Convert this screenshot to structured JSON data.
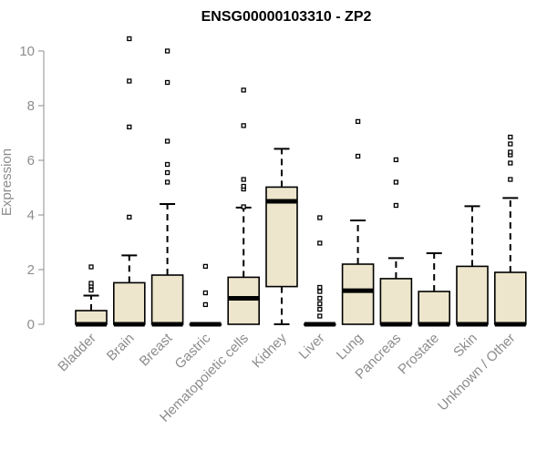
{
  "chart_data": {
    "type": "boxplot",
    "title": "ENSG00000103310 - ZP2",
    "xlabel": "",
    "ylabel": "Expression",
    "ylim": [
      0,
      10.5
    ],
    "yticks": [
      0,
      2,
      4,
      6,
      8,
      10
    ],
    "colors": {
      "box_fill": "#ede6cc",
      "box_stroke": "#000000",
      "axis": "#8c8c8c",
      "text": "#8c8c8c",
      "title": "#000000"
    },
    "categories": [
      "Bladder",
      "Brain",
      "Breast",
      "Gastric",
      "Hematopoietic cells",
      "Kidney",
      "Liver",
      "Lung",
      "Pancreas",
      "Prostate",
      "Skin",
      "Unknown / Other"
    ],
    "boxes": [
      {
        "category": "Bladder",
        "min": 0,
        "q1": 0,
        "median": 0,
        "q3": 0.5,
        "max": 1.05,
        "outliers": [
          1.25,
          1.4,
          1.5,
          2.1
        ]
      },
      {
        "category": "Brain",
        "min": 0,
        "q1": 0,
        "median": 0,
        "q3": 1.52,
        "max": 2.52,
        "outliers": [
          3.92,
          7.22,
          8.9,
          10.45
        ]
      },
      {
        "category": "Breast",
        "min": 0,
        "q1": 0,
        "median": 0,
        "q3": 1.8,
        "max": 4.4,
        "outliers": [
          5.2,
          5.55,
          5.85,
          6.7,
          8.85,
          10.0
        ]
      },
      {
        "category": "Gastric",
        "min": 0,
        "q1": 0,
        "median": 0,
        "q3": 0,
        "max": 0,
        "outliers": [
          0.72,
          1.15,
          2.12
        ]
      },
      {
        "category": "Hematopoietic cells",
        "min": 0,
        "q1": 0,
        "median": 0.95,
        "q3": 1.72,
        "max": 4.27,
        "outliers": [
          4.3,
          4.95,
          5.05,
          5.3,
          7.27,
          8.57
        ]
      },
      {
        "category": "Kidney",
        "min": 0,
        "q1": 1.38,
        "median": 4.5,
        "q3": 5.02,
        "max": 6.42,
        "outliers": []
      },
      {
        "category": "Liver",
        "min": 0,
        "q1": 0,
        "median": 0,
        "q3": 0,
        "max": 0,
        "outliers": [
          0.3,
          0.55,
          0.75,
          0.95,
          1.2,
          1.35,
          2.97,
          3.9
        ]
      },
      {
        "category": "Lung",
        "min": 0,
        "q1": 0,
        "median": 1.23,
        "q3": 2.2,
        "max": 3.8,
        "outliers": [
          6.15,
          7.42
        ]
      },
      {
        "category": "Pancreas",
        "min": 0,
        "q1": 0,
        "median": 0,
        "q3": 1.67,
        "max": 2.42,
        "outliers": [
          4.35,
          5.2,
          6.02
        ]
      },
      {
        "category": "Prostate",
        "min": 0,
        "q1": 0,
        "median": 0,
        "q3": 1.2,
        "max": 2.6,
        "outliers": []
      },
      {
        "category": "Skin",
        "min": 0,
        "q1": 0,
        "median": 0,
        "q3": 2.12,
        "max": 4.32,
        "outliers": []
      },
      {
        "category": "Unknown / Other",
        "min": 0,
        "q1": 0,
        "median": 0,
        "q3": 1.9,
        "max": 4.62,
        "outliers": [
          5.3,
          5.9,
          6.2,
          6.3,
          6.6,
          6.85
        ]
      }
    ]
  }
}
